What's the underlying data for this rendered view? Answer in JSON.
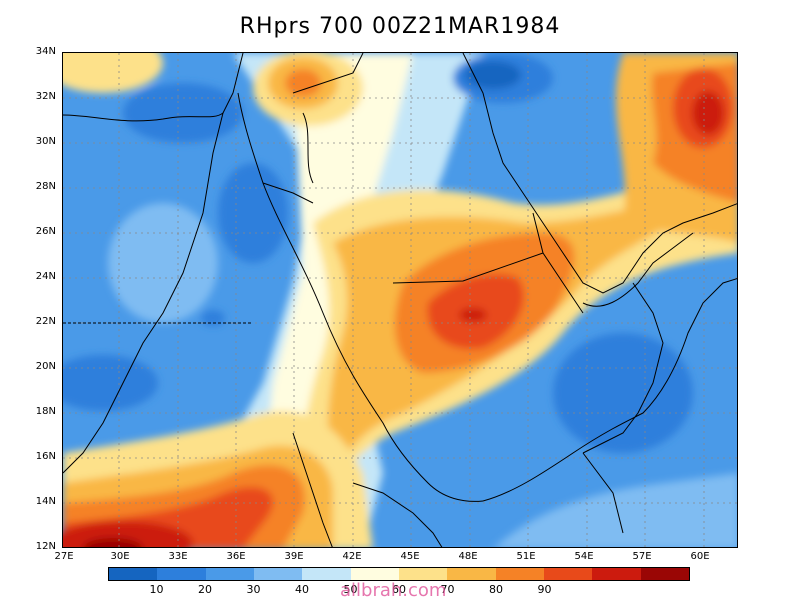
{
  "title": "RHprs 700 00Z21MAR1984",
  "lat_labels": [
    "34N",
    "32N",
    "30N",
    "28N",
    "26N",
    "24N",
    "22N",
    "20N",
    "18N",
    "16N",
    "14N",
    "12N"
  ],
  "lon_labels": [
    "27E",
    "30E",
    "33E",
    "36E",
    "39E",
    "42E",
    "45E",
    "48E",
    "51E",
    "54E",
    "57E",
    "60E"
  ],
  "colorbar": {
    "colors": [
      "#1565c0",
      "#2d7fdc",
      "#4a9ae8",
      "#7fbcf2",
      "#c4e6f8",
      "#fffde0",
      "#fde18a",
      "#f9b745",
      "#f58226",
      "#e84a1a",
      "#cc1b0e",
      "#9a0605"
    ],
    "labels": [
      "10",
      "20",
      "30",
      "40",
      "50",
      "60",
      "70",
      "80",
      "90"
    ]
  },
  "watermark": "allbrah.com"
}
